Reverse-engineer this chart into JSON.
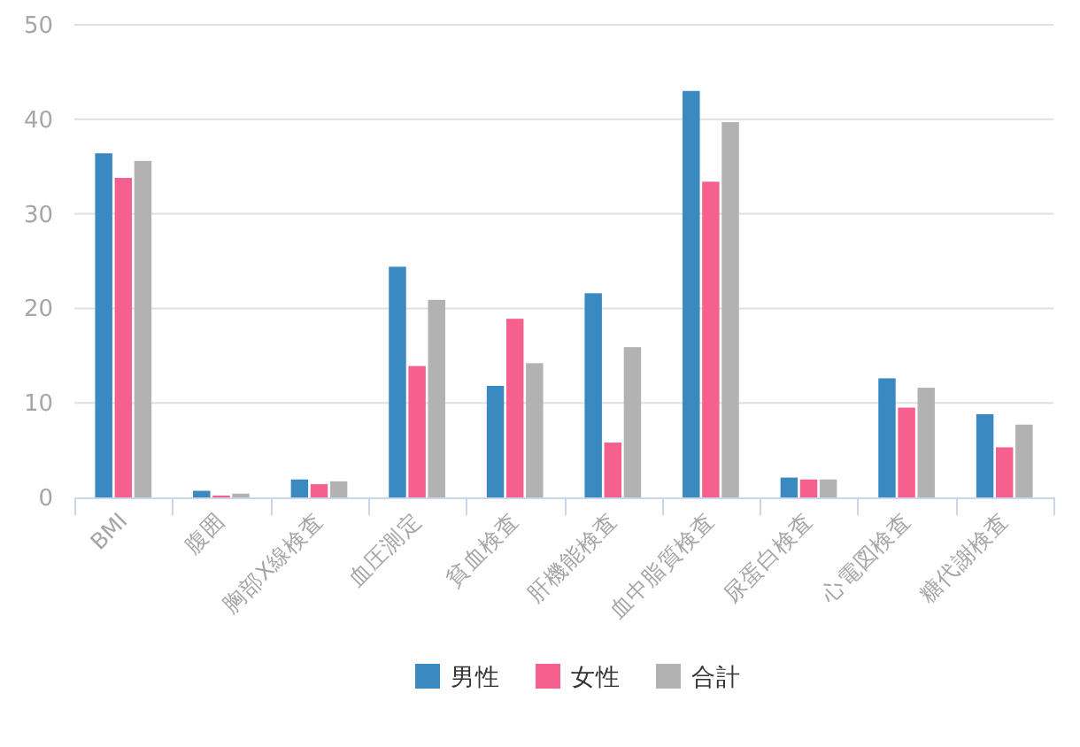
{
  "chart_data": {
    "type": "bar",
    "categories": [
      "BMI",
      "腹囲",
      "胸部X線検査",
      "血圧測定",
      "貧血検査",
      "肝機能検査",
      "血中脂質検査",
      "尿蛋白検査",
      "心電図検査",
      "糖代謝検査"
    ],
    "series": [
      {
        "name": "男性",
        "color": "#3a89c1",
        "values": [
          36.4,
          0.7,
          1.9,
          24.4,
          11.8,
          21.6,
          43.0,
          2.1,
          12.6,
          8.8
        ]
      },
      {
        "name": "女性",
        "color": "#f5608f",
        "values": [
          33.8,
          0.2,
          1.4,
          13.9,
          18.9,
          5.8,
          33.4,
          1.9,
          9.5,
          5.3
        ]
      },
      {
        "name": "合計",
        "color": "#b2b2b2",
        "values": [
          35.6,
          0.4,
          1.7,
          20.9,
          14.2,
          15.9,
          39.7,
          1.9,
          11.6,
          7.7
        ]
      }
    ],
    "ylim": [
      0,
      50
    ],
    "yticks": [
      0,
      10,
      20,
      30,
      40,
      50
    ],
    "grid": "y",
    "legend": "bottom"
  }
}
